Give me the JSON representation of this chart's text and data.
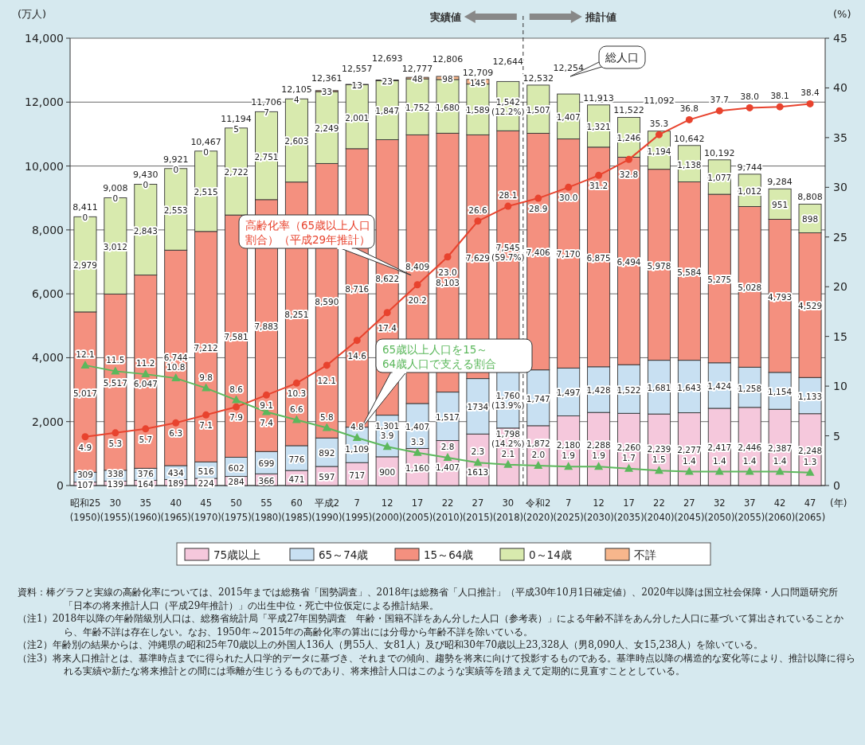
{
  "chart_data": {
    "type": "bar",
    "stacked": true,
    "ylabel": "(万人)",
    "y2label": "(%)",
    "xlabel": "(年)",
    "categories": [
      "昭和25(1950)",
      "30(1955)",
      "35(1960)",
      "40(1965)",
      "45(1970)",
      "50(1975)",
      "55(1980)",
      "60(1985)",
      "平成2(1990)",
      "7(1995)",
      "12(2000)",
      "17(2005)",
      "22(2010)",
      "27(2015)",
      "30(2018)",
      "令和2(2020)",
      "7(2025)",
      "12(2030)",
      "17(2035)",
      "22(2040)",
      "27(2045)",
      "32(2050)",
      "37(2055)",
      "42(2060)",
      "47(2065)"
    ],
    "ylim": [
      0,
      14000
    ],
    "yticks": [
      0,
      {
        "value": 2000,
        "label": "2,000"
      },
      {
        "value": 4000,
        "label": "4,000"
      },
      {
        "value": 6000,
        "label": "6,000"
      },
      {
        "value": 8000,
        "label": "8,000"
      },
      {
        "value": 10000,
        "label": "10,000"
      },
      {
        "value": 12000,
        "label": "12,000"
      },
      {
        "value": 14000,
        "label": "14,000"
      }
    ],
    "y2lim": [
      0,
      45
    ],
    "y2ticks": [
      0,
      5,
      10,
      15,
      20,
      25,
      30,
      35,
      40,
      45
    ],
    "grid": "y",
    "legend": "bottom",
    "series": [
      {
        "name": "75歳以上",
        "color": "#f5c8dc",
        "values": [
          107,
          139,
          164,
          189,
          224,
          284,
          366,
          471,
          597,
          717,
          900,
          1160,
          1407,
          1613,
          1798,
          1872,
          2180,
          2288,
          2260,
          2239,
          2277,
          2417,
          2446,
          2387,
          2248
        ],
        "value_labels": [
          "107",
          "139",
          "164",
          "189",
          "224",
          "284",
          "366",
          "471",
          "597",
          "717",
          "900",
          "1,160",
          "1,407",
          "1613",
          "1,798 (14.2%)",
          "1,872",
          "2,180",
          "2,288",
          "2,260",
          "2,239",
          "2,277",
          "2,417",
          "2,446",
          "2,387",
          "2,248"
        ]
      },
      {
        "name": "65～74歳",
        "color": "#c8e0f2",
        "values": [
          309,
          338,
          376,
          434,
          516,
          602,
          699,
          776,
          892,
          1109,
          1301,
          1407,
          1517,
          1734,
          1760,
          1747,
          1497,
          1428,
          1522,
          1681,
          1643,
          1424,
          1258,
          1154,
          1133
        ],
        "value_labels": [
          "309",
          "338",
          "376",
          "434",
          "516",
          "602",
          "699",
          "776",
          "892",
          "1,109",
          "1,301",
          "1,407",
          "1,517",
          "1734",
          "1,760 (13.9%)",
          "1,747",
          "1,497",
          "1,428",
          "1,522",
          "1,681",
          "1,643",
          "1,424",
          "1,258",
          "1,154",
          "1,133"
        ]
      },
      {
        "name": "15～64歳",
        "color": "#f4907f",
        "values": [
          5017,
          5517,
          6047,
          6744,
          7212,
          7581,
          7883,
          8251,
          8590,
          8716,
          8622,
          8409,
          8103,
          7629,
          7545,
          7406,
          7170,
          6875,
          6494,
          5978,
          5584,
          5275,
          5028,
          4793,
          4529
        ],
        "value_labels": [
          "5,017",
          "5,517",
          "6,047",
          "6,744",
          "7,212",
          "7,581",
          "7,883",
          "8,251",
          "8,590",
          "8,716",
          "8,622",
          "8,409",
          "8,103",
          "7,629",
          "7,545 (59.7%)",
          "7,406",
          "7,170",
          "6,875",
          "6,494",
          "5,978",
          "5,584",
          "5,275",
          "5,028",
          "4,793",
          "4,529"
        ]
      },
      {
        "name": "0～14歳",
        "color": "#d8eaae",
        "values": [
          2979,
          3012,
          2843,
          2553,
          2515,
          2722,
          2751,
          2603,
          2249,
          2001,
          1847,
          1752,
          1680,
          1589,
          1542,
          1507,
          1407,
          1321,
          1246,
          1194,
          1138,
          1077,
          1012,
          951,
          898
        ],
        "value_labels": [
          "2,979",
          "3,012",
          "2,843",
          "2,553",
          "2,515",
          "2,722",
          "2,751",
          "2,603",
          "2,249",
          "2,001",
          "1,847",
          "1,752",
          "1,680",
          "1,589",
          "1,542 (12.2%)",
          "1,507",
          "1,407",
          "1,321",
          "1,246",
          "1,194",
          "1,138",
          "1,077",
          "1,012",
          "951",
          "898"
        ]
      },
      {
        "name": "不詳",
        "color": "#f7b68c",
        "values": [
          0,
          0,
          0,
          0,
          0,
          5,
          7,
          4,
          33,
          13,
          23,
          48,
          98,
          145,
          null,
          null,
          null,
          null,
          null,
          null,
          null,
          null,
          null,
          null,
          null
        ],
        "value_labels": [
          "0",
          "0",
          "0",
          "0",
          "0",
          "5",
          "7",
          "4",
          "33",
          "13",
          "23",
          "48",
          "98",
          "145",
          null,
          null,
          null,
          null,
          null,
          null,
          null,
          null,
          null,
          null,
          null
        ]
      },
      {
        "name": "高齢化率（65歳以上人口割合）（平成29年推計）",
        "type": "line",
        "axis": "y2",
        "marker": "circle",
        "color": "#e8432e",
        "values": [
          4.9,
          5.3,
          5.7,
          6.3,
          7.1,
          7.9,
          9.1,
          10.3,
          12.1,
          14.6,
          17.4,
          20.2,
          23.0,
          26.6,
          28.1,
          28.9,
          30.0,
          31.2,
          32.8,
          35.3,
          36.8,
          37.7,
          38.0,
          38.1,
          38.4
        ],
        "value_labels": [
          "4.9",
          "5.3",
          "5.7",
          "6.3",
          "7.1",
          "7.9",
          "9.1",
          "10.3",
          "12.1",
          "14.6",
          "17.4",
          "20.2",
          "23.0",
          "26.6",
          "28.1",
          "28.9",
          "30.0",
          "31.2",
          "32.8",
          "35.3",
          "36.8",
          "37.7",
          "38.0",
          "38.1",
          "38.4"
        ]
      },
      {
        "name": "65歳以上人口を15～64歳人口で支える割合",
        "type": "line",
        "axis": "y2",
        "marker": "triangle",
        "color": "#5cb85c",
        "values": [
          12.1,
          11.5,
          11.2,
          10.8,
          9.8,
          8.6,
          7.4,
          6.6,
          5.8,
          4.8,
          3.9,
          3.3,
          2.8,
          2.3,
          2.1,
          2.0,
          1.9,
          1.9,
          1.7,
          1.5,
          1.4,
          1.4,
          1.4,
          1.4,
          1.3
        ],
        "value_labels": [
          "12.1",
          "11.5",
          "11.2",
          "10.8",
          "9.8",
          "8.6",
          "7.4",
          "6.6",
          "5.8",
          "4.8",
          "3.9",
          "3.3",
          "2.8",
          "2.3",
          "2.1",
          "2.0",
          "1.9",
          "1.9",
          "1.7",
          "1.5",
          "1.4",
          "1.4",
          "1.4",
          "1.4",
          "1.3"
        ]
      }
    ],
    "totals": [
      "8,411",
      "9,008",
      "9,430",
      "9,921",
      "10,467",
      "11,194",
      "11,706",
      "12,105",
      "12,361",
      "12,557",
      "12,693",
      "12,777",
      "12,806",
      "12,709",
      "12,644",
      "12,532",
      "12,254",
      "11,913",
      "11,522",
      "11,092",
      "10,642",
      "10,192",
      "9,744",
      "9,284",
      "8,808"
    ],
    "annotations": [
      "実績値",
      "推計値",
      "総人口",
      "資料：棒グラフと実線の高齢化率については、2015年までは総務省「国勢調査」、2018年は総務省「人口推計」（平成30年10月1日確定値）、2020年以降は国立社会保障・人口問題研究所「日本の将来推計人口（平成29年推計）」の出生中位・死亡中位仮定による推計結果。",
      "（注1）2018年以降の年齢階級別人口は、総務省統計局「平成27年国勢調査　年齢・国籍不詳をあん分した人口（参考表）」による年齢不詳をあん分した人口に基づいて算出されていることから、年齢不詳は存在しない。なお、1950年～2015年の高齢化率の算出には分母から年齢不詳を除いている。",
      "（注2）年齢別の結果からは、沖縄県の昭和25年70歳以上の外国人136人（男55人、女81人）及び昭和30年70歳以上23,328人（男8,090人、女15,238人）を除いている。",
      "（注3）将来人口推計とは、基準時点までに得られた人口学的データに基づき、それまでの傾向、趨勢を将来に向けて投影するものである。基準時点以降の構造的な変化等により、推計以降に得られる実績や新たな将来推計との間には乖離が生じうるものであり、将来推計人口はこのような実績等を踏まえて定期的に見直すこととしている。"
    ]
  }
}
